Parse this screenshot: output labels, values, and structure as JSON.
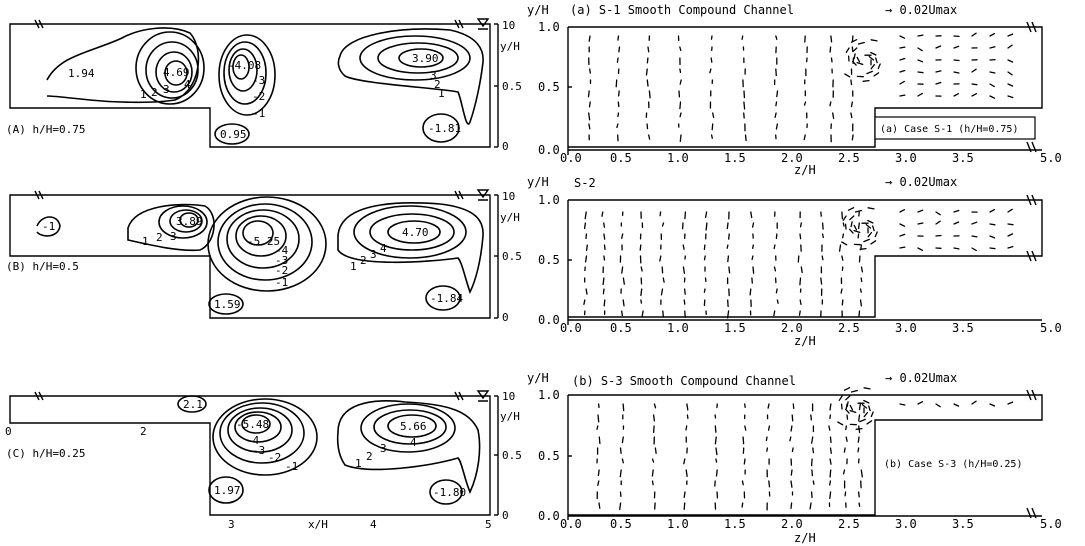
{
  "left_panels": [
    {
      "label": "(A)  h/H=0.75",
      "yaxis": {
        "ticks": [
          "10",
          "0.5",
          "0"
        ],
        "label": "y/H"
      },
      "contour_labels": [
        "1.94",
        "4.69",
        "4",
        "3",
        "2",
        "1",
        "-4.08",
        "-3",
        "-2",
        "-1",
        "3.90",
        "3",
        "2",
        "1",
        "0.95",
        "-1.81"
      ]
    },
    {
      "label": "(B)  h/H=0.5",
      "yaxis": {
        "ticks": [
          "10",
          "0.5",
          "0"
        ],
        "label": "y/H"
      },
      "contour_labels": [
        "-1",
        "3.89",
        "3",
        "2",
        "1",
        "-5.25",
        "-4",
        "-3",
        "-2",
        "-1",
        "4.70",
        "4",
        "3",
        "2",
        "1",
        "1.59",
        "-1.84"
      ]
    },
    {
      "label": "(C)  h/H=0.25",
      "yaxis": {
        "ticks": [
          "10",
          "0.5",
          "0"
        ],
        "label": "y/H"
      },
      "contour_labels": [
        "2.1",
        "-5.48",
        "-4",
        "-3",
        "-2",
        "-1",
        "5.66",
        "4",
        "3",
        "2",
        "1",
        "1.97",
        "-1.80"
      ],
      "xaxis": {
        "ticks": [
          "0",
          "2",
          "3",
          "4",
          "5"
        ],
        "label": "x/H"
      }
    }
  ],
  "right_panels": [
    {
      "title": "(a) S-1   Smooth Compound Channel",
      "ylabel": "y/H",
      "scale_label": "→ 0.02Umax",
      "case_label": "(a) Case S-1 (h/H=0.75)",
      "xticks": [
        "0.0",
        "0.5",
        "1.0",
        "1.5",
        "2.0",
        "2.5",
        "3.0",
        "3.5",
        "5.0"
      ],
      "yticks": [
        "1.0",
        "0.5",
        "0.0"
      ],
      "xlabel": "z/H"
    },
    {
      "title": "S-2",
      "ylabel": "y/H",
      "scale_label": "→ 0.02Umax",
      "case_label": "",
      "xticks": [
        "0.0",
        "0.5",
        "1.0",
        "1.5",
        "2.0",
        "2.5",
        "3.0",
        "3.5",
        "5.0"
      ],
      "yticks": [
        "1.0",
        "0.5",
        "0.0"
      ],
      "xlabel": "z/H"
    },
    {
      "title": "(b) S-3   Smooth Compound Channel",
      "ylabel": "y/H",
      "scale_label": "→ 0.02Umax",
      "case_label": "(b) Case S-3 (h/H=0.25)",
      "xticks": [
        "0.0",
        "0.5",
        "1.0",
        "1.5",
        "2.0",
        "2.5",
        "3.0",
        "3.5",
        "5.0"
      ],
      "yticks": [
        "1.0",
        "0.5",
        "0.0"
      ],
      "xlabel": "z/H"
    }
  ]
}
